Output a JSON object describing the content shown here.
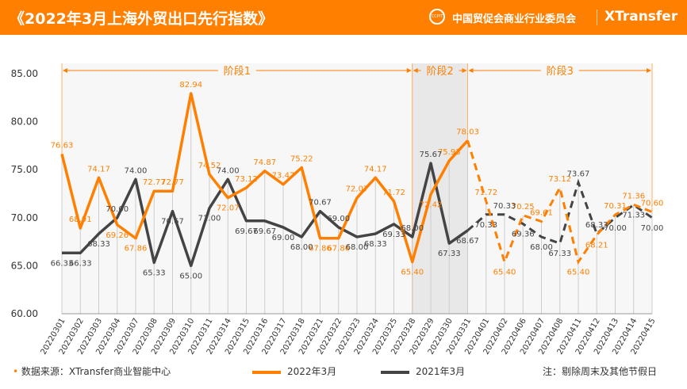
{
  "header": {
    "title": "《2022年3月上海外贸出口先行指数》",
    "org": "中国贸促会商业行业委员会",
    "brand": "XTransfer",
    "logo_text": "CCPIT"
  },
  "footer": {
    "source": "数据来源：XTransfer商业智能中心",
    "note": "注：剔除周末及其他节假日"
  },
  "colors": {
    "accent": "#FF7F00",
    "series2021": "#444444"
  },
  "chart_data": {
    "type": "line",
    "categories": [
      "20220301",
      "20220302",
      "20220303",
      "20220304",
      "20220307",
      "20220308",
      "20220309",
      "20220310",
      "20220311",
      "20220314",
      "20220315",
      "20220316",
      "20220317",
      "20220318",
      "20220321",
      "20220322",
      "20220323",
      "20220324",
      "20220325",
      "20220328",
      "20220329",
      "20220330",
      "20220331",
      "20220401",
      "20220402",
      "20220406",
      "20220407",
      "20220408",
      "20220411",
      "20220412",
      "20220413",
      "20220414",
      "20220415"
    ],
    "series": [
      {
        "name": "2022年3月",
        "color": "#FF7F00",
        "values": [
          76.63,
          68.91,
          74.17,
          69.26,
          67.86,
          72.77,
          72.77,
          82.94,
          74.52,
          72.07,
          73.12,
          74.87,
          73.47,
          75.22,
          67.86,
          67.86,
          72.07,
          74.17,
          71.72,
          65.4,
          72.42,
          75.93,
          78.03,
          71.72,
          65.4,
          70.25,
          69.61,
          73.12,
          65.4,
          68.21,
          70.31,
          71.36,
          70.6
        ]
      },
      {
        "name": "2021年3月",
        "color": "#444444",
        "values": [
          66.33,
          66.33,
          68.33,
          70.0,
          74.0,
          65.33,
          70.67,
          65.0,
          71.0,
          74.0,
          69.67,
          69.67,
          69.0,
          68.0,
          70.67,
          69.0,
          68.0,
          68.33,
          69.33,
          68.0,
          75.67,
          67.33,
          68.67,
          70.33,
          70.33,
          69.36,
          68.0,
          67.33,
          73.67,
          68.33,
          70.0,
          71.33,
          70.0
        ]
      }
    ],
    "dashed_from": "20220331",
    "ylim": [
      60,
      85
    ],
    "yticks": [
      "60.00",
      "65.00",
      "70.00",
      "75.00",
      "80.00",
      "85.00"
    ],
    "phases": [
      {
        "label": "阶段1",
        "from": "20220301",
        "to": "20220328",
        "shaded": false
      },
      {
        "label": "阶段2",
        "from": "20220328",
        "to": "20220331",
        "shaded": true
      },
      {
        "label": "阶段3",
        "from": "20220331",
        "to": "20220415",
        "shaded": false
      }
    ],
    "legend_placement": "bottom"
  }
}
